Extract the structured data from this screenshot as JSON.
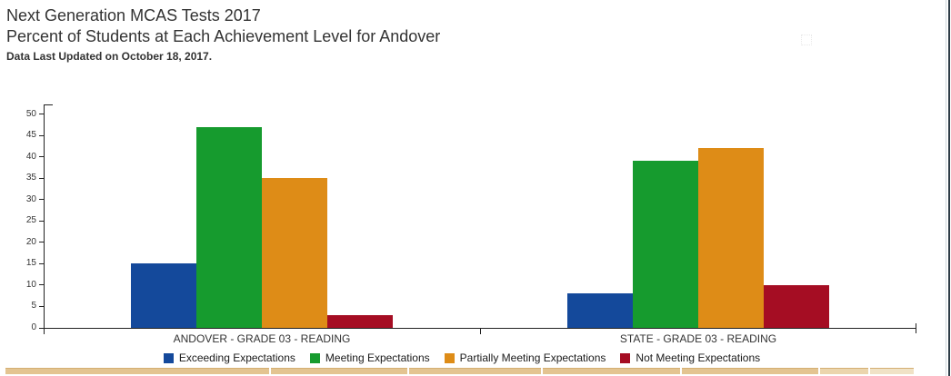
{
  "header": {
    "title": "Next Generation MCAS Tests 2017",
    "subtitle": "Percent of Students at Each Achievement Level for Andover",
    "note": "Data Last Updated on October 18, 2017."
  },
  "chart_data": {
    "type": "bar",
    "title": "Next Generation MCAS Tests 2017",
    "subtitle": "Percent of Students at Each Achievement Level for Andover",
    "categories": [
      "ANDOVER - GRADE 03 - READING",
      "STATE - GRADE 03 - READING"
    ],
    "series": [
      {
        "name": "Exceeding Expectations",
        "color": "#14499b",
        "values": [
          15,
          8
        ]
      },
      {
        "name": "Meeting Expectations",
        "color": "#169b2e",
        "values": [
          47,
          39
        ]
      },
      {
        "name": "Partially Meeting Expectations",
        "color": "#de8c17",
        "values": [
          35,
          42
        ]
      },
      {
        "name": "Not Meeting Expectations",
        "color": "#a50d23",
        "values": [
          3,
          10
        ]
      }
    ],
    "xlabel": "",
    "ylabel": "",
    "ylim": [
      0,
      50
    ],
    "ytick_step": 5,
    "grid": false,
    "legend_position": "bottom"
  },
  "colors": {
    "axis": "#222222",
    "text": "#333333",
    "strip_base": "#e3c491",
    "strip_mid": "#ebd5ad",
    "strip_light": "#f0e2c6",
    "window_edge": "#2e3d47"
  }
}
